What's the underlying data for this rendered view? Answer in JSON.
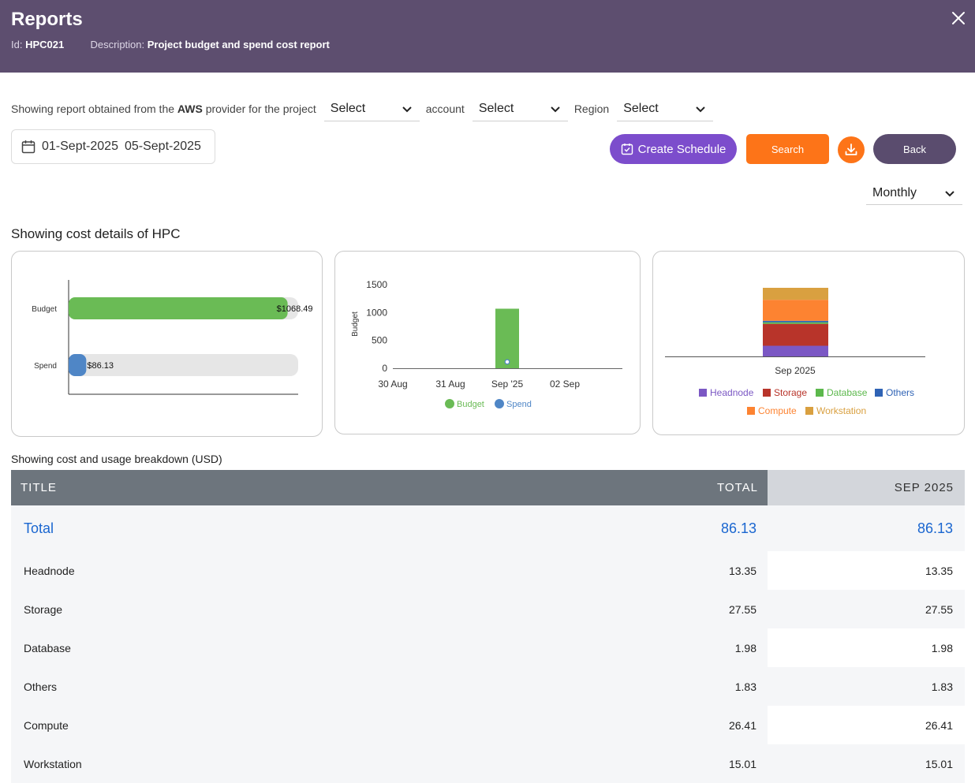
{
  "header": {
    "title": "Reports",
    "id_label": "Id:",
    "id_value": "HPC021",
    "description_label": "Description:",
    "description_value": "Project budget and spend cost report"
  },
  "filters": {
    "intro_prefix": "Showing report obtained from the",
    "provider": "AWS",
    "intro_suffix": "provider for the project",
    "project_select": "Select",
    "account_label": "account",
    "account_select": "Select",
    "region_label": "Region",
    "region_select": "Select",
    "date_start": "01-Sept-2025",
    "date_end": "05-Sept-2025"
  },
  "actions": {
    "create_schedule": "Create Schedule",
    "search": "Search",
    "back": "Back",
    "period_select": "Monthly"
  },
  "section_title": "Showing cost details of HPC",
  "breakdown_title": "Showing cost and usage breakdown  (USD)",
  "colors": {
    "header_bg": "#5d4e6f",
    "accent_purple": "#7c4dcc",
    "accent_orange": "#fd7418",
    "back_button": "#5a4c6e",
    "total_blue": "#1a66d0"
  },
  "chart_data": [
    {
      "type": "bar",
      "orientation": "horizontal",
      "categories": [
        "Budget",
        "Spend"
      ],
      "values": [
        1068.49,
        86.13
      ],
      "data_labels": [
        "$1068.49",
        "$86.13"
      ],
      "colors": [
        "#6abb55",
        "#4f86c6"
      ],
      "xlim": [
        0,
        1120
      ]
    },
    {
      "type": "bar",
      "x": [
        "30 Aug",
        "31 Aug",
        "Sep '25",
        "02 Sep"
      ],
      "series": [
        {
          "name": "Budget",
          "values": [
            null,
            null,
            1068.49,
            null
          ],
          "color": "#6abb55"
        },
        {
          "name": "Spend",
          "values": [
            null,
            null,
            86.13,
            null
          ],
          "color": "#4f86c6"
        }
      ],
      "ylabel": "Budget",
      "yticks": [
        0,
        500,
        1000,
        1500
      ],
      "ylim": [
        0,
        1500
      ],
      "legend": "bottom"
    },
    {
      "type": "bar",
      "stacked": true,
      "categories": [
        "Sep 2025"
      ],
      "series": [
        {
          "name": "Headnode",
          "values": [
            13.35
          ],
          "color": "#7b58c4"
        },
        {
          "name": "Storage",
          "values": [
            27.55
          ],
          "color": "#b8342a"
        },
        {
          "name": "Database",
          "values": [
            1.98
          ],
          "color": "#5cb84c"
        },
        {
          "name": "Others",
          "values": [
            1.83
          ],
          "color": "#2f63b5"
        },
        {
          "name": "Compute",
          "values": [
            26.41
          ],
          "color": "#fd8331"
        },
        {
          "name": "Workstation",
          "values": [
            15.01
          ],
          "color": "#d9a040"
        }
      ],
      "legend": "bottom"
    }
  ],
  "table": {
    "headers": [
      "TITLE",
      "TOTAL",
      "SEP 2025"
    ],
    "rows": [
      {
        "title": "Total",
        "total": "86.13",
        "sep": "86.13"
      },
      {
        "title": "Headnode",
        "total": "13.35",
        "sep": "13.35"
      },
      {
        "title": "Storage",
        "total": "27.55",
        "sep": "27.55"
      },
      {
        "title": "Database",
        "total": "1.98",
        "sep": "1.98"
      },
      {
        "title": "Others",
        "total": "1.83",
        "sep": "1.83"
      },
      {
        "title": "Compute",
        "total": "26.41",
        "sep": "26.41"
      },
      {
        "title": "Workstation",
        "total": "15.01",
        "sep": "15.01"
      }
    ]
  }
}
